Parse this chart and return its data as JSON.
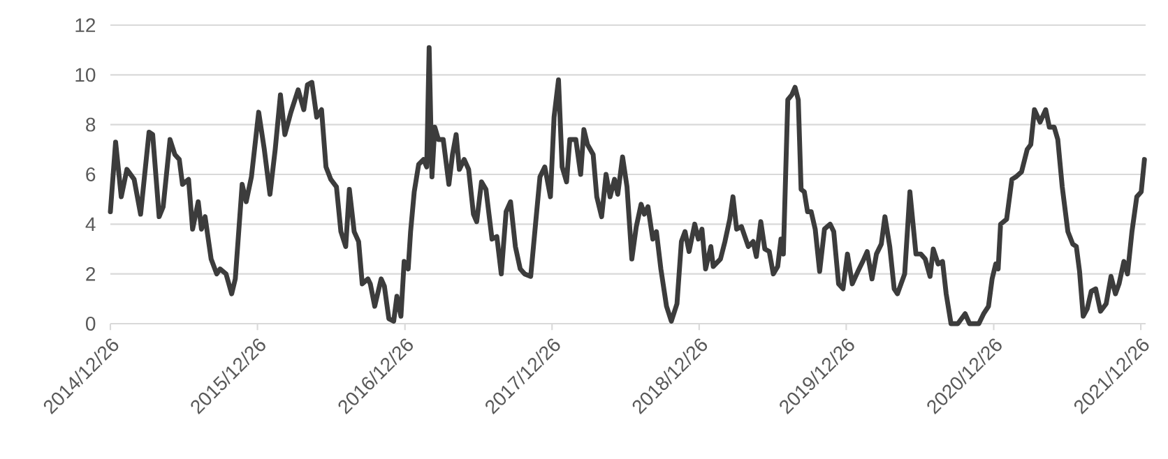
{
  "chart_data": {
    "type": "line",
    "color": "#3c3c3c",
    "grid": "y",
    "x": [
      "2014-12-26",
      "2015-01-08",
      "2015-01-22",
      "2015-02-05",
      "2015-02-23",
      "2015-03-11",
      "2015-04-01",
      "2015-04-10",
      "2015-04-26",
      "2015-05-06",
      "2015-05-23",
      "2015-06-04",
      "2015-06-15",
      "2015-06-23",
      "2015-07-08",
      "2015-07-18",
      "2015-08-01",
      "2015-08-09",
      "2015-08-18",
      "2015-09-02",
      "2015-09-16",
      "2015-09-24",
      "2015-10-09",
      "2015-10-23",
      "2015-11-01",
      "2015-11-18",
      "2015-11-28",
      "2015-12-11",
      "2015-12-29",
      "2016-01-12",
      "2016-01-26",
      "2016-02-08",
      "2016-02-21",
      "2016-03-03",
      "2016-03-18",
      "2016-04-05",
      "2016-04-19",
      "2016-04-28",
      "2016-05-09",
      "2016-05-21",
      "2016-06-02",
      "2016-06-13",
      "2016-06-25",
      "2016-07-09",
      "2016-07-20",
      "2016-08-01",
      "2016-08-10",
      "2016-08-22",
      "2016-09-02",
      "2016-09-11",
      "2016-09-25",
      "2016-10-01",
      "2016-10-12",
      "2016-10-28",
      "2016-11-05",
      "2016-11-16",
      "2016-11-28",
      "2016-12-06",
      "2016-12-16",
      "2016-12-24",
      "2017-01-03",
      "2017-01-09",
      "2017-01-18",
      "2017-01-29",
      "2017-02-10",
      "2017-02-18",
      "2017-02-24",
      "2017-03-03",
      "2017-03-10",
      "2017-03-19",
      "2017-03-31",
      "2017-04-14",
      "2017-04-23",
      "2017-05-02",
      "2017-05-10",
      "2017-05-22",
      "2017-06-02",
      "2017-06-14",
      "2017-06-22",
      "2017-07-04",
      "2017-07-15",
      "2017-07-30",
      "2017-08-11",
      "2017-08-22",
      "2017-09-03",
      "2017-09-14",
      "2017-09-26",
      "2017-10-08",
      "2017-10-19",
      "2017-11-03",
      "2017-11-15",
      "2017-11-26",
      "2017-12-08",
      "2017-12-22",
      "2017-12-31",
      "2018-01-11",
      "2018-01-20",
      "2018-01-31",
      "2018-02-08",
      "2018-02-23",
      "2018-03-07",
      "2018-03-15",
      "2018-03-24",
      "2018-04-07",
      "2018-04-16",
      "2018-04-28",
      "2018-05-09",
      "2018-05-19",
      "2018-05-30",
      "2018-06-07",
      "2018-06-19",
      "2018-06-30",
      "2018-07-12",
      "2018-07-23",
      "2018-08-04",
      "2018-08-12",
      "2018-08-21",
      "2018-09-02",
      "2018-09-11",
      "2018-09-22",
      "2018-10-06",
      "2018-10-18",
      "2018-11-01",
      "2018-11-12",
      "2018-11-21",
      "2018-12-01",
      "2018-12-15",
      "2018-12-24",
      "2019-01-02",
      "2019-01-11",
      "2019-01-24",
      "2019-01-30",
      "2019-02-17",
      "2019-02-28",
      "2019-03-12",
      "2019-03-20",
      "2019-03-29",
      "2019-04-10",
      "2019-04-27",
      "2019-05-09",
      "2019-05-17",
      "2019-05-28",
      "2019-06-07",
      "2019-06-18",
      "2019-06-28",
      "2019-07-09",
      "2019-07-17",
      "2019-07-23",
      "2019-08-03",
      "2019-08-13",
      "2019-08-21",
      "2019-08-29",
      "2019-09-05",
      "2019-09-13",
      "2019-09-21",
      "2019-09-30",
      "2019-10-10",
      "2019-10-21",
      "2019-11-02",
      "2019-11-16",
      "2019-11-25",
      "2019-12-07",
      "2019-12-18",
      "2019-12-29",
      "2020-01-10",
      "2020-01-24",
      "2020-02-05",
      "2020-02-16",
      "2020-02-28",
      "2020-03-10",
      "2020-03-22",
      "2020-03-31",
      "2020-04-12",
      "2020-04-23",
      "2020-05-01",
      "2020-05-19",
      "2020-06-01",
      "2020-06-16",
      "2020-06-28",
      "2020-07-09",
      "2020-07-21",
      "2020-07-29",
      "2020-08-10",
      "2020-08-21",
      "2020-08-30",
      "2020-09-11",
      "2020-09-28",
      "2020-10-16",
      "2020-10-27",
      "2020-11-19",
      "2020-12-01",
      "2020-12-13",
      "2020-12-22",
      "2020-12-31",
      "2021-01-06",
      "2021-01-12",
      "2021-01-27",
      "2021-02-09",
      "2021-02-19",
      "2021-03-05",
      "2021-03-19",
      "2021-03-28",
      "2021-04-06",
      "2021-04-20",
      "2021-05-04",
      "2021-05-13",
      "2021-05-25",
      "2021-06-03",
      "2021-06-14",
      "2021-06-28",
      "2021-07-10",
      "2021-07-19",
      "2021-07-27",
      "2021-08-05",
      "2021-08-15",
      "2021-08-25",
      "2021-09-05",
      "2021-09-17",
      "2021-10-01",
      "2021-10-13",
      "2021-10-24",
      "2021-11-02",
      "2021-11-14",
      "2021-11-23",
      "2021-12-04",
      "2021-12-16",
      "2021-12-27",
      "2022-01-04"
    ],
    "values": [
      4.5,
      7.3,
      5.1,
      6.2,
      5.8,
      4.4,
      7.7,
      7.6,
      4.3,
      4.7,
      7.4,
      6.8,
      6.6,
      5.6,
      5.8,
      3.8,
      4.9,
      3.8,
      4.3,
      2.6,
      2.0,
      2.2,
      2.0,
      1.2,
      1.8,
      5.6,
      4.9,
      5.9,
      8.5,
      7.0,
      5.2,
      7.0,
      9.2,
      7.6,
      8.5,
      9.4,
      8.6,
      9.6,
      9.7,
      8.3,
      8.6,
      6.3,
      5.8,
      5.5,
      3.7,
      3.1,
      5.4,
      3.7,
      3.3,
      1.6,
      1.8,
      1.6,
      0.7,
      1.8,
      1.5,
      0.2,
      0.1,
      1.1,
      0.3,
      2.5,
      2.2,
      3.7,
      5.3,
      6.4,
      6.6,
      6.3,
      11.1,
      5.9,
      7.9,
      7.4,
      7.4,
      5.6,
      6.8,
      7.6,
      6.2,
      6.6,
      6.2,
      4.4,
      4.1,
      5.7,
      5.4,
      3.4,
      3.5,
      2.0,
      4.5,
      4.9,
      3.1,
      2.2,
      2.0,
      1.9,
      4.0,
      5.9,
      6.3,
      5.1,
      8.3,
      9.8,
      6.3,
      5.7,
      7.4,
      7.4,
      6.0,
      7.8,
      7.2,
      6.8,
      5.1,
      4.3,
      6.0,
      5.1,
      5.8,
      5.2,
      6.7,
      5.5,
      2.6,
      3.9,
      4.8,
      4.4,
      4.7,
      3.4,
      3.7,
      2.2,
      0.7,
      0.1,
      0.8,
      3.3,
      3.7,
      2.9,
      4.0,
      3.4,
      3.8,
      2.2,
      3.1,
      2.3,
      2.6,
      3.3,
      4.2,
      5.1,
      3.8,
      3.9,
      3.1,
      3.3,
      2.7,
      4.1,
      3.0,
      2.9,
      2.0,
      2.3,
      3.4,
      2.8,
      9.0,
      9.2,
      9.5,
      9.0,
      5.4,
      5.3,
      4.5,
      4.5,
      3.8,
      2.1,
      3.8,
      4.0,
      3.7,
      1.6,
      1.4,
      2.8,
      1.6,
      2.1,
      2.5,
      2.9,
      1.8,
      2.8,
      3.2,
      4.3,
      3.1,
      1.4,
      1.2,
      2.0,
      5.3,
      2.8,
      2.8,
      2.6,
      1.9,
      3.0,
      2.4,
      2.5,
      1.2,
      0,
      0,
      0.4,
      0,
      0,
      0.4,
      0.7,
      1.8,
      2.4,
      2.2,
      4.0,
      4.2,
      5.8,
      5.9,
      6.1,
      7.0,
      7.2,
      8.6,
      8.1,
      8.6,
      7.9,
      7.9,
      7.4,
      5.5,
      3.7,
      3.2,
      3.1,
      2.1,
      0.3,
      0.6,
      1.3,
      1.4,
      0.5,
      0.8,
      1.9,
      1.2,
      1.6,
      2.5,
      2.0,
      3.7,
      5.1,
      5.3,
      6.6
    ],
    "xlim": [
      "2014-12-26",
      "2022-01-07"
    ],
    "xticks": [
      {
        "value": "2014-12-26",
        "label": "2014/12/26"
      },
      {
        "value": "2015-12-26",
        "label": "2015/12/26"
      },
      {
        "value": "2016-12-26",
        "label": "2016/12/26"
      },
      {
        "value": "2017-12-26",
        "label": "2017/12/26"
      },
      {
        "value": "2018-12-26",
        "label": "2018/12/26"
      },
      {
        "value": "2019-12-26",
        "label": "2019/12/26"
      },
      {
        "value": "2020-12-26",
        "label": "2020/12/26"
      },
      {
        "value": "2021-12-26",
        "label": "2021/12/26"
      }
    ],
    "ylim": [
      0,
      12
    ],
    "yticks": [
      0,
      2,
      4,
      6,
      8,
      10,
      12
    ]
  }
}
